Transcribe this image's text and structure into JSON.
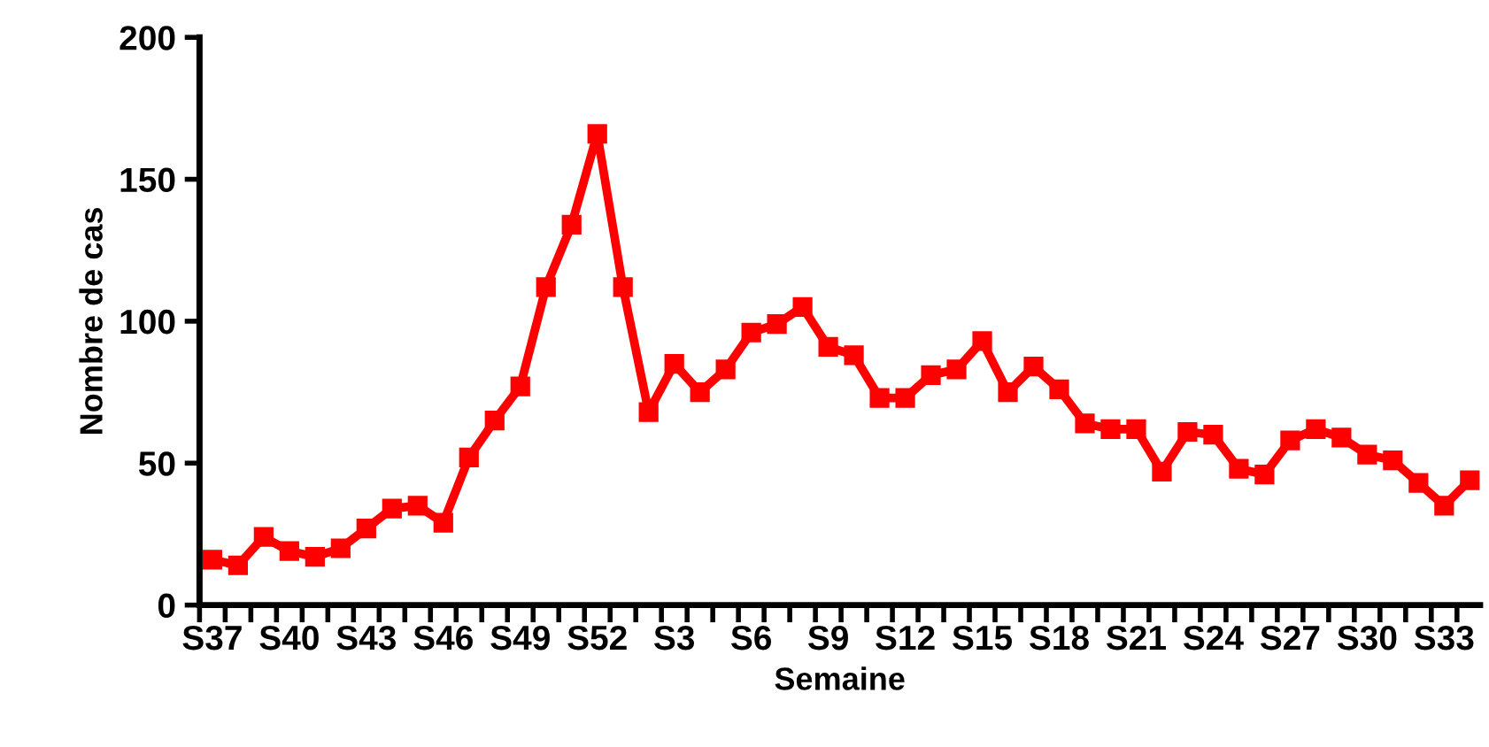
{
  "chart_data": {
    "type": "line",
    "xlabel": "Semaine",
    "ylabel": "Nombre de cas",
    "categories": [
      "S37",
      null,
      null,
      "S40",
      null,
      null,
      "S43",
      null,
      null,
      "S46",
      null,
      null,
      "S49",
      null,
      null,
      "S52",
      null,
      null,
      "S3",
      null,
      null,
      "S6",
      null,
      null,
      "S9",
      null,
      null,
      "S12",
      null,
      null,
      "S15",
      null,
      null,
      "S18",
      null,
      null,
      "S21",
      null,
      null,
      "S24",
      null,
      null,
      "S27",
      null,
      null,
      "S30",
      null,
      null,
      "S33",
      null
    ],
    "series": [
      {
        "color": "#ff0000",
        "values": [
          16,
          14,
          24,
          19,
          17,
          20,
          27,
          34,
          35,
          29,
          52,
          65,
          77,
          112,
          134,
          166,
          112,
          68,
          85,
          75,
          83,
          96,
          99,
          105,
          91,
          88,
          73,
          73,
          81,
          83,
          93,
          75,
          84,
          76,
          64,
          62,
          62,
          47,
          61,
          60,
          48,
          46,
          58,
          62,
          59,
          53,
          51,
          43,
          35,
          44
        ]
      }
    ],
    "ylim": [
      0,
      200
    ],
    "yticks": [
      0,
      50,
      100,
      150,
      200
    ],
    "grid": false,
    "legend": false,
    "marker": "square",
    "line_style": "solid"
  }
}
